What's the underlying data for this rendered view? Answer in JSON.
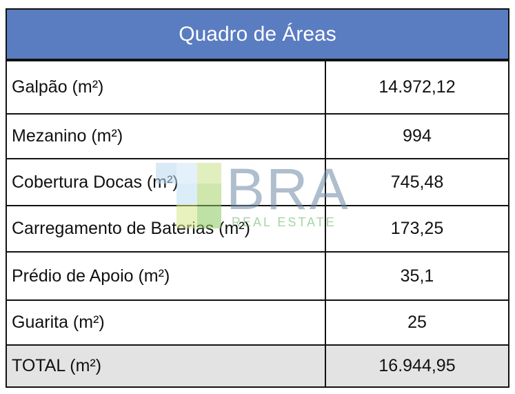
{
  "header": {
    "title": "Quadro de Áreas"
  },
  "table": {
    "rows": [
      [
        "Galpão (m²)",
        "14.972,12"
      ],
      [
        "Mezanino (m²)",
        "994"
      ],
      [
        "Cobertura Docas (m²)",
        "745,48"
      ],
      [
        "Carregamento de Baterias (m²)",
        "173,25"
      ],
      [
        "Prédio de Apoio (m²)",
        "35,1"
      ],
      [
        "Guarita (m²)",
        "25"
      ],
      [
        "TOTAL (m²)",
        "16.944,95"
      ]
    ]
  },
  "watermark": {
    "name": "BRA",
    "tagline": "REAL ESTATE"
  }
}
